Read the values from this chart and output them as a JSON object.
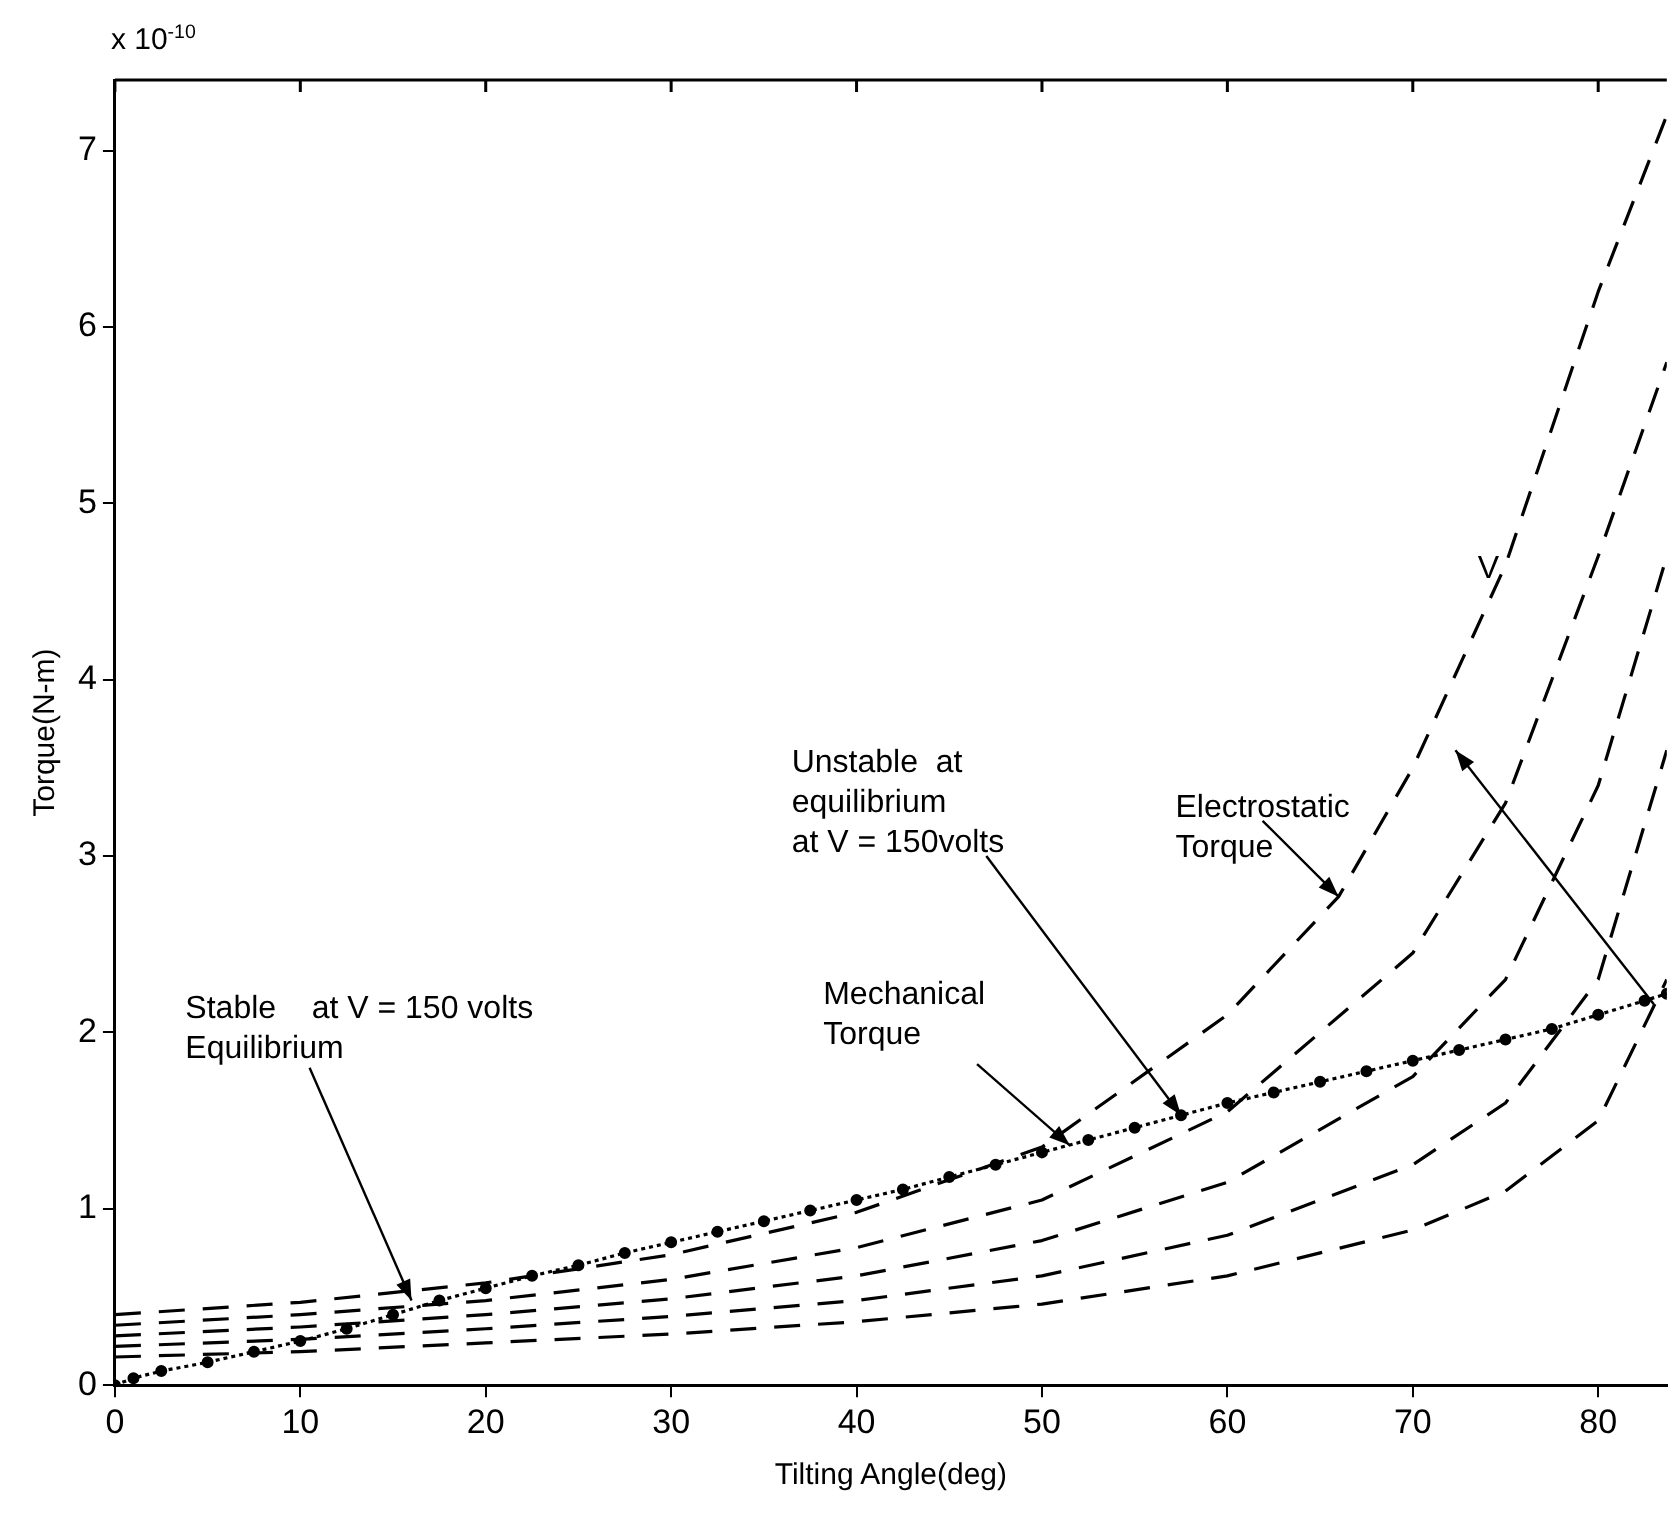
{
  "chart_data": {
    "type": "line",
    "xlabel": "Tilting Angle(deg)",
    "ylabel": "Torque(N-m)",
    "xlim": [
      0,
      83.7
    ],
    "xticks": [
      0,
      10,
      20,
      30,
      40,
      50,
      60,
      70,
      80
    ],
    "ylim": [
      0,
      7.4
    ],
    "yticks": [
      0,
      1,
      2,
      3,
      4,
      5,
      6,
      7
    ],
    "series": [
      {
        "color": "#000000",
        "line_style": "dotted",
        "marker": "circle",
        "x": [
          0,
          1,
          2.5,
          5,
          7.5,
          10,
          12.5,
          15,
          17.5,
          20,
          22.5,
          25,
          27.5,
          30,
          32.5,
          35,
          37.5,
          40,
          42.5,
          45,
          47.5,
          50,
          52.5,
          55,
          57.5,
          60,
          62.5,
          65,
          67.5,
          70,
          72.5,
          75,
          77.5,
          80,
          82.5,
          83.7
        ],
        "values": [
          0,
          0.04,
          0.08,
          0.13,
          0.19,
          0.25,
          0.32,
          0.4,
          0.48,
          0.55,
          0.62,
          0.68,
          0.75,
          0.81,
          0.87,
          0.93,
          0.99,
          1.05,
          1.11,
          1.18,
          1.25,
          1.32,
          1.39,
          1.46,
          1.53,
          1.6,
          1.66,
          1.72,
          1.78,
          1.84,
          1.9,
          1.96,
          2.02,
          2.1,
          2.18,
          2.22
        ]
      },
      {
        "color": "#000000",
        "line_style": "dashed",
        "x": [
          0,
          10,
          20,
          30,
          40,
          50,
          60,
          66,
          70,
          75,
          80,
          83.7
        ],
        "values": [
          0.4,
          0.47,
          0.58,
          0.74,
          0.98,
          1.35,
          2.1,
          2.77,
          3.5,
          4.65,
          6.2,
          7.2
        ]
      },
      {
        "color": "#000000",
        "line_style": "dashed",
        "x": [
          0,
          10,
          20,
          30,
          40,
          50,
          60,
          70,
          75,
          80,
          83.7
        ],
        "values": [
          0.34,
          0.4,
          0.48,
          0.6,
          0.78,
          1.05,
          1.55,
          2.45,
          3.3,
          4.7,
          5.8
        ]
      },
      {
        "color": "#000000",
        "line_style": "dashed",
        "x": [
          0,
          10,
          20,
          30,
          40,
          50,
          60,
          70,
          75,
          80,
          83.7
        ],
        "values": [
          0.28,
          0.33,
          0.4,
          0.49,
          0.62,
          0.82,
          1.15,
          1.75,
          2.3,
          3.4,
          4.7
        ]
      },
      {
        "color": "#000000",
        "line_style": "dashed",
        "x": [
          0,
          10,
          20,
          30,
          40,
          50,
          60,
          70,
          75,
          80,
          83.7
        ],
        "values": [
          0.22,
          0.26,
          0.32,
          0.39,
          0.48,
          0.62,
          0.85,
          1.25,
          1.6,
          2.3,
          3.6
        ]
      },
      {
        "color": "#000000",
        "line_style": "dashed",
        "x": [
          0,
          10,
          20,
          30,
          40,
          50,
          60,
          70,
          75,
          80,
          83.7
        ],
        "values": [
          0.16,
          0.19,
          0.24,
          0.29,
          0.36,
          0.46,
          0.62,
          0.88,
          1.1,
          1.5,
          2.3
        ]
      }
    ],
    "annotations": [
      "x 10$^{-10}$",
      {
        "text": "Stable    at V = 150 volts\nEquilibrium",
        "x": 16,
        "y": 0.48
      },
      {
        "text": "Unstable  at\nequilibrium\nat V = 150volts",
        "x": 57.5,
        "y": 1.53
      },
      {
        "text": "Mechanical\nTorque",
        "x": 51.5,
        "y": 1.36
      },
      {
        "text": "Electrostatic\nTorque",
        "x": 66,
        "y": 2.77
      },
      "V"
    ]
  }
}
